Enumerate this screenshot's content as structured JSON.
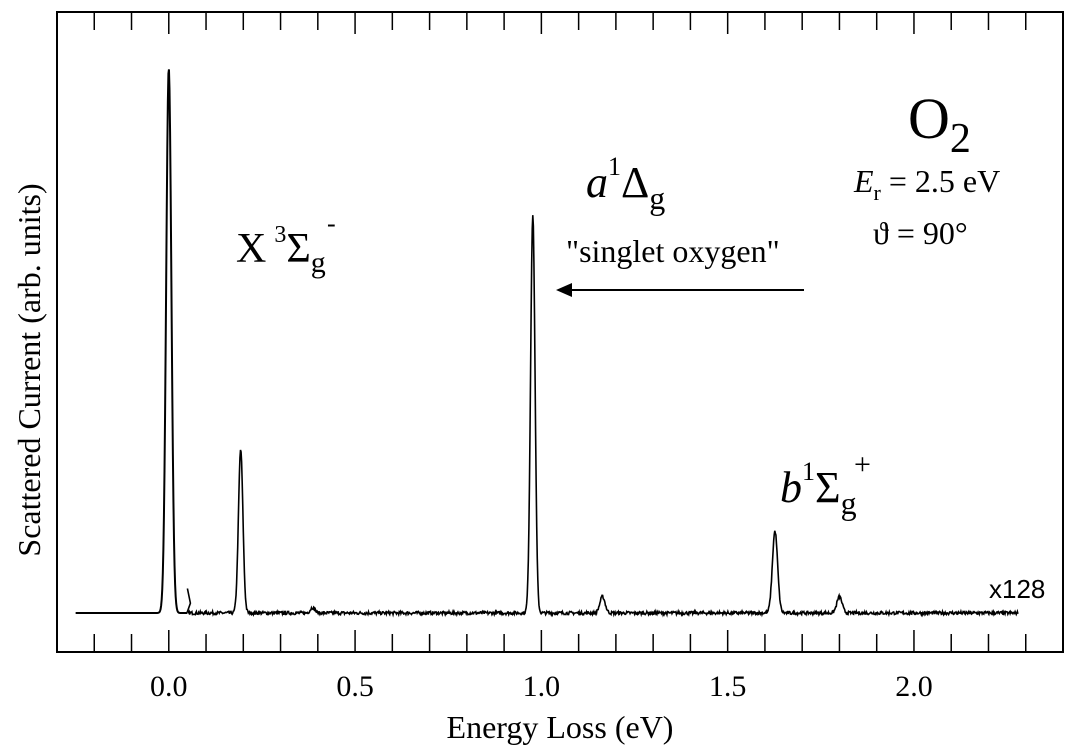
{
  "chart_data": {
    "type": "line",
    "xlabel": "Energy Loss (eV)",
    "ylabel": "Scattered Current (arb. units)",
    "xlim": [
      -0.3,
      2.4
    ],
    "ylim": [
      0,
      1.09
    ],
    "x_ticks": [
      {
        "value": 0.0,
        "label": "0.0"
      },
      {
        "value": 0.5,
        "label": "0.5"
      },
      {
        "value": 1.0,
        "label": "1.0"
      },
      {
        "value": 1.5,
        "label": "1.5"
      },
      {
        "value": 2.0,
        "label": "2.0"
      }
    ],
    "x_minor_step": 0.1,
    "grid": false,
    "series": [
      {
        "peaks": [
          {
            "center": 0.0,
            "height": 1.0,
            "sigma": 0.007
          }
        ],
        "x_range": [
          -0.25,
          0.05
        ]
      },
      {
        "label": "x128",
        "peaks": [
          {
            "center": 0.193,
            "height": 0.3,
            "sigma": 0.006
          },
          {
            "center": 0.386,
            "height": 0.01,
            "sigma": 0.006
          },
          {
            "center": 0.977,
            "height": 0.73,
            "sigma": 0.006
          },
          {
            "center": 1.164,
            "height": 0.03,
            "sigma": 0.007
          },
          {
            "center": 1.627,
            "height": 0.15,
            "sigma": 0.007
          },
          {
            "center": 1.8,
            "height": 0.03,
            "sigma": 0.007
          }
        ],
        "x_range": [
          0.05,
          2.28
        ]
      }
    ],
    "annotations": {
      "species": {
        "main": "O",
        "sub": "2"
      },
      "er": {
        "sym": "E",
        "sub": "r",
        "rest": " = 2.5 eV"
      },
      "theta": "ϑ = 90°",
      "state_x": {
        "main": "X",
        "sup": "3",
        "greek": "Σ",
        "sub": "g",
        "sup2": "-"
      },
      "state_a": {
        "main": "a",
        "sup": "1",
        "greek": "Δ",
        "sub": "g"
      },
      "singlet": "\"singlet oxygen\"",
      "state_b": {
        "main": "b",
        "sup": "1",
        "greek": "Σ",
        "sub": "g",
        "sup2": "+"
      },
      "scale": "x128"
    }
  }
}
